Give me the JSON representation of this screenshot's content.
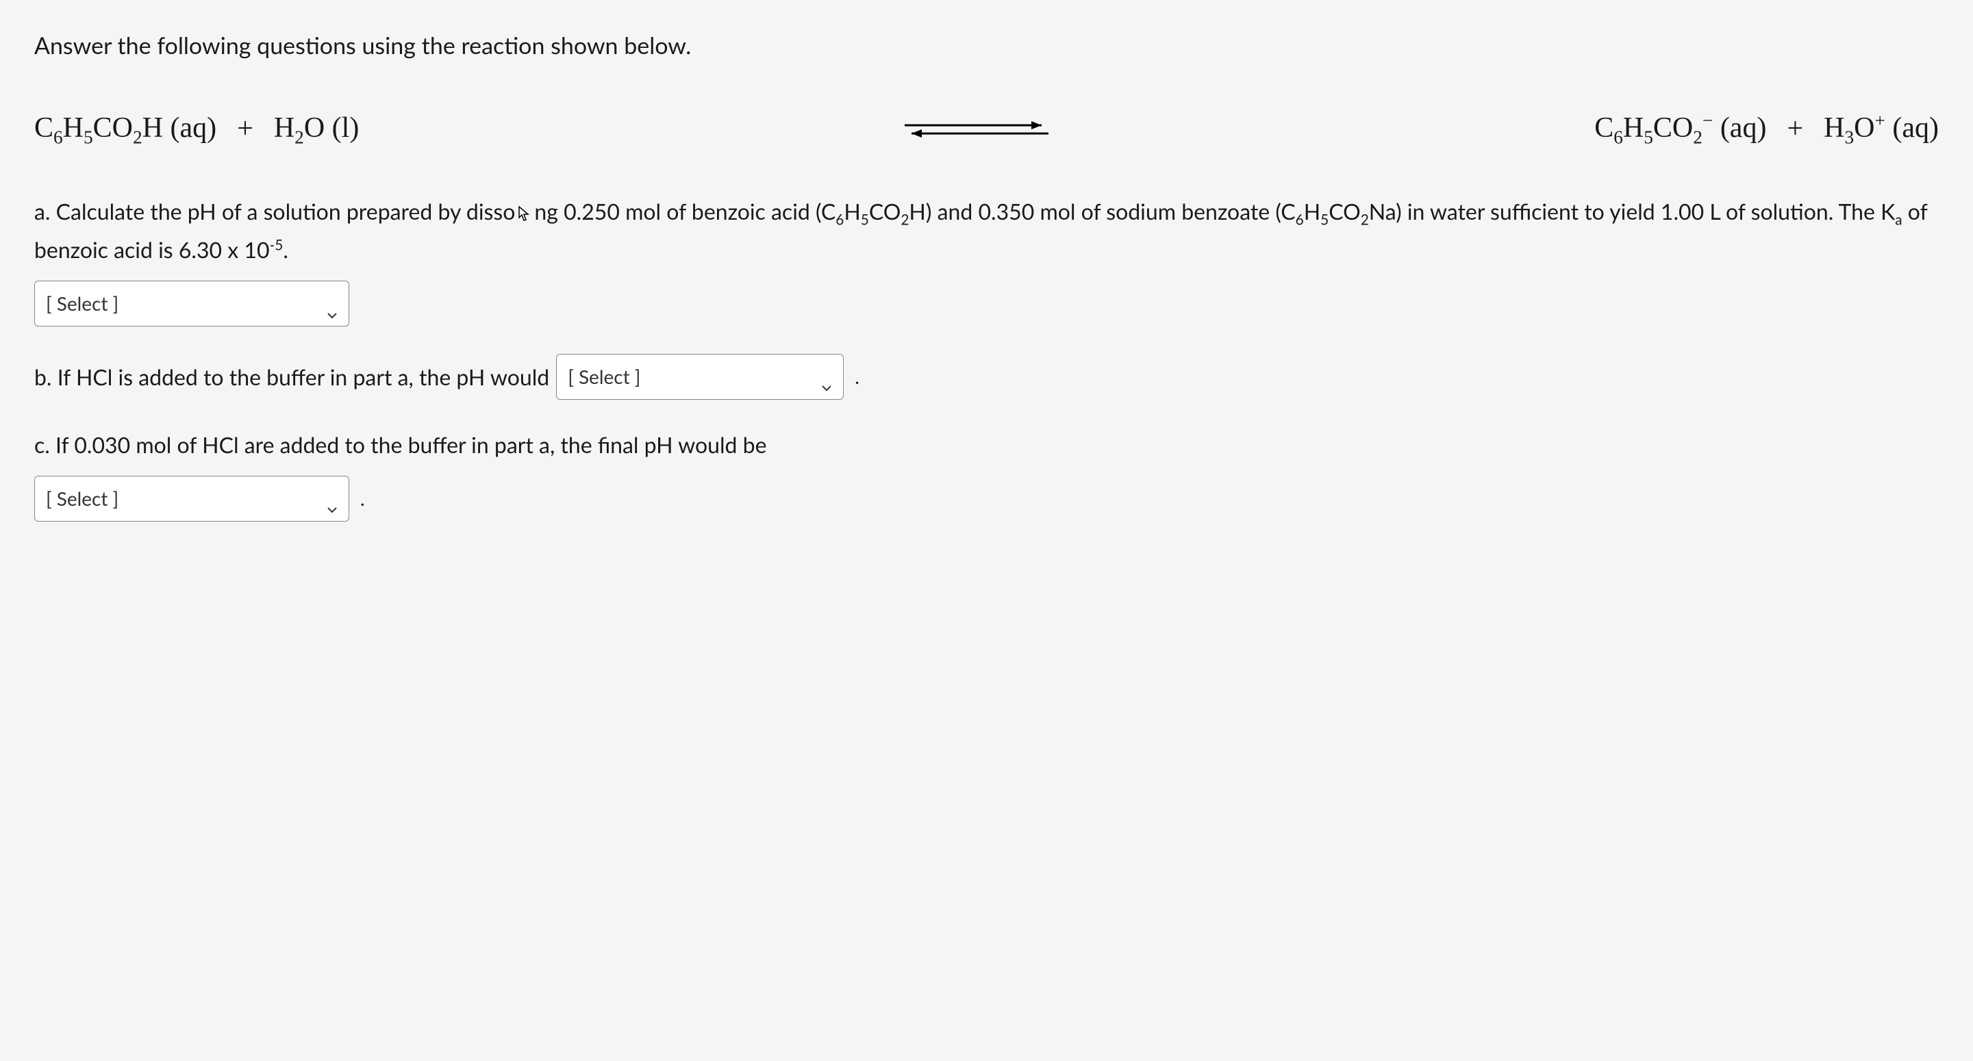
{
  "intro": "Answer the following questions using the reaction shown below.",
  "equation": {
    "reactant1_html": "C<span class='sub'>6</span>H<span class='sub'>5</span>CO<span class='sub'>2</span>H (aq)",
    "plus": "+",
    "reactant2_html": "H<span class='sub'>2</span>O (l)",
    "product1_html": "C<span class='sub'>6</span>H<span class='sub'>5</span>CO<span class='sub'>2</span><span class='sup'>−</span> (aq)",
    "product2_html": "H<span class='sub'>3</span>O<span class='sup'>+</span> (aq)"
  },
  "partA": {
    "label": "a.",
    "pre_text": "Calculate the pH of a solution prepared by disso",
    "mid_text": "ng 0.250 mol of benzoic acid (C",
    "mid_text2": "H",
    "mid_text3": "CO",
    "mid_text4": "H) and 0.350 mol of sodium benzoate (C",
    "mid_text5": "H",
    "mid_text6": "CO",
    "mid_text7": "Na) in water sufficient to yield 1.00 L of solution. The K",
    "mid_text8": " of benzoic acid is 6.30 x 10",
    "end_text": ".",
    "select_label": "[ Select ]"
  },
  "partB": {
    "label": "b.",
    "text": "If HCl is added to the buffer in part a, the pH would",
    "select_label": "[ Select ]",
    "period": "."
  },
  "partC": {
    "label": "c.",
    "text": "If 0.030 mol of HCl are added to the buffer in part a, the final pH would be",
    "select_label": "[ Select ]",
    "period": "."
  },
  "style": {
    "body_bg": "#f5f5f5",
    "text_color": "#1a1a1a",
    "select_border": "#888",
    "select_bg": "#ffffff",
    "body_fontsize": 32,
    "equation_fontsize": 42,
    "intro_fontsize": 34
  }
}
